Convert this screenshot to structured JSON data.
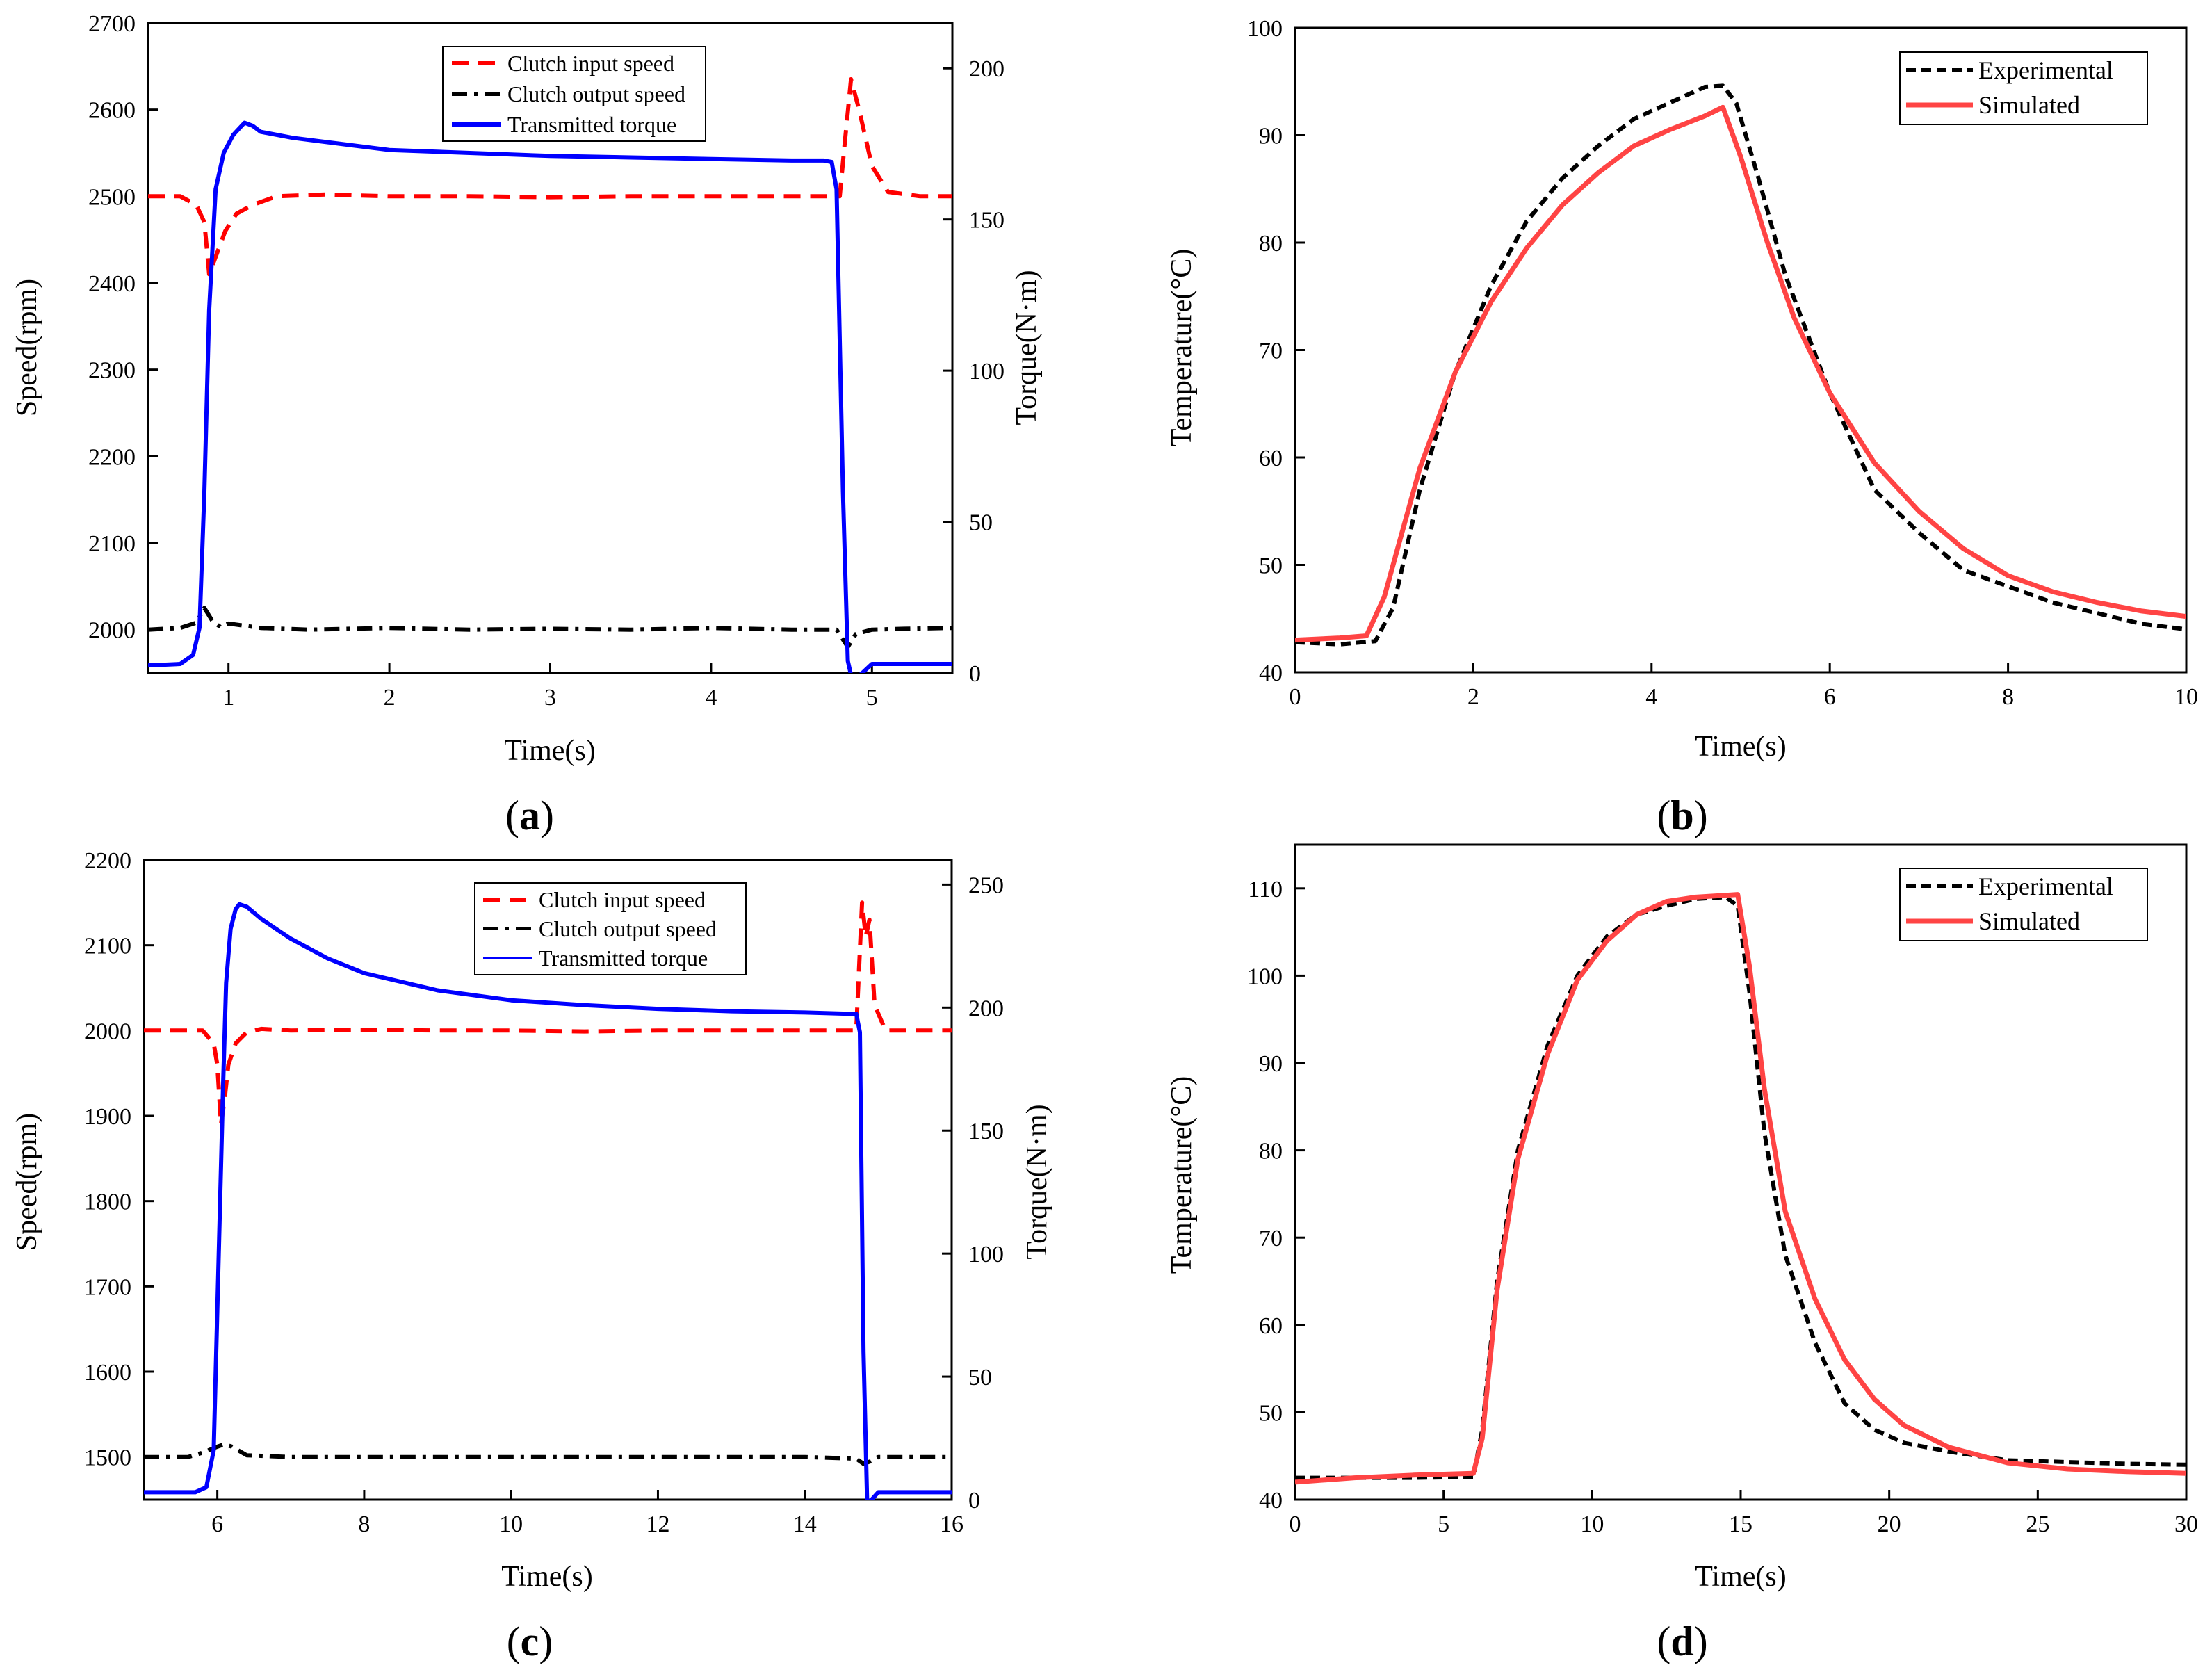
{
  "colors": {
    "input": "#ff0000",
    "output": "#000000",
    "torque": "#0000ff",
    "experimental": "#000000",
    "simulated": "#ff4444"
  },
  "chart_data": [
    {
      "id": "a",
      "panel_label": "a",
      "type": "line",
      "xlabel": "Time(s)",
      "ylabel": "Speed(rpm)",
      "y2label": "Torque(N·m)",
      "xlim": [
        0.5,
        5.5
      ],
      "ylim": [
        1950,
        2700
      ],
      "y2lim": [
        0,
        215
      ],
      "xticks": [
        1,
        2,
        3,
        4,
        5
      ],
      "yticks": [
        2000,
        2100,
        2200,
        2300,
        2400,
        2500,
        2600,
        2700
      ],
      "y2ticks": [
        0,
        50,
        100,
        150,
        200
      ],
      "legend_position": "top-center",
      "series": [
        {
          "name": "Clutch input speed",
          "axis": "left",
          "style": "input",
          "x": [
            0.5,
            0.7,
            0.8,
            0.85,
            0.88,
            0.92,
            0.98,
            1.05,
            1.15,
            1.3,
            1.6,
            2,
            2.5,
            3,
            3.5,
            4,
            4.5,
            4.8,
            4.83,
            4.87,
            4.92,
            5,
            5.1,
            5.3,
            5.5
          ],
          "y": [
            2500,
            2500,
            2490,
            2470,
            2410,
            2430,
            2460,
            2480,
            2490,
            2500,
            2502,
            2500,
            2500,
            2499,
            2500,
            2500,
            2500,
            2500,
            2560,
            2635,
            2600,
            2535,
            2505,
            2500,
            2500
          ]
        },
        {
          "name": "Clutch output speed",
          "axis": "left",
          "style": "output",
          "x": [
            0.5,
            0.7,
            0.8,
            0.85,
            0.9,
            0.95,
            1,
            1.2,
            1.5,
            2,
            2.5,
            3,
            3.5,
            4,
            4.5,
            4.7,
            4.78,
            4.85,
            4.9,
            5,
            5.2,
            5.5
          ],
          "y": [
            2000,
            2002,
            2008,
            2025,
            2010,
            2003,
            2007,
            2002,
            2000,
            2002,
            2000,
            2001,
            2000,
            2002,
            2000,
            2000,
            2000,
            1980,
            1995,
            2000,
            2001,
            2002
          ]
        },
        {
          "name": "Transmitted torque",
          "axis": "right",
          "style": "torque",
          "x": [
            0.5,
            0.7,
            0.78,
            0.82,
            0.85,
            0.88,
            0.92,
            0.97,
            1.03,
            1.1,
            1.15,
            1.2,
            1.4,
            1.7,
            2,
            2.5,
            3,
            3.5,
            4,
            4.5,
            4.7,
            4.75,
            4.78,
            4.82,
            4.85,
            4.88,
            5,
            5.5
          ],
          "y": [
            2.5,
            3,
            6,
            15,
            60,
            120,
            160,
            172,
            178,
            182,
            181,
            179,
            177,
            175,
            173,
            172,
            171,
            170.5,
            170,
            169.5,
            169.5,
            169,
            160,
            60,
            4,
            -3,
            3,
            3
          ]
        }
      ]
    },
    {
      "id": "b",
      "panel_label": "b",
      "type": "line",
      "xlabel": "Time(s)",
      "ylabel": "Temperature(°C)",
      "xlim": [
        0,
        10
      ],
      "ylim": [
        40,
        100
      ],
      "xticks": [
        0,
        2,
        4,
        6,
        8,
        10
      ],
      "yticks": [
        40,
        50,
        60,
        70,
        80,
        90,
        100
      ],
      "legend_position": "top-right",
      "series": [
        {
          "name": "Experimental",
          "style": "experimental",
          "x": [
            0,
            0.5,
            0.9,
            1.1,
            1.4,
            1.8,
            2.2,
            2.6,
            3,
            3.4,
            3.8,
            4.2,
            4.6,
            4.8,
            4.95,
            5.2,
            5.5,
            6,
            6.5,
            7,
            7.5,
            8,
            8.5,
            9,
            9.5,
            10
          ],
          "y": [
            42.8,
            42.6,
            42.9,
            46,
            57,
            68,
            76,
            82,
            86,
            89,
            91.5,
            93,
            94.5,
            94.6,
            93,
            86,
            77,
            66,
            57,
            53,
            49.5,
            48,
            46.5,
            45.5,
            44.5,
            44
          ]
        },
        {
          "name": "Simulated",
          "style": "simulated",
          "x": [
            0,
            0.5,
            0.8,
            1.0,
            1.2,
            1.4,
            1.8,
            2.2,
            2.6,
            3,
            3.4,
            3.8,
            4.2,
            4.6,
            4.8,
            5.0,
            5.3,
            5.6,
            6,
            6.5,
            7,
            7.5,
            8,
            8.5,
            9,
            9.5,
            10
          ],
          "y": [
            43,
            43.2,
            43.4,
            47,
            53,
            59,
            68,
            74.5,
            79.5,
            83.5,
            86.5,
            89,
            90.5,
            91.8,
            92.6,
            88,
            80,
            73,
            66,
            59.5,
            55,
            51.5,
            49,
            47.5,
            46.5,
            45.7,
            45.2
          ]
        }
      ]
    },
    {
      "id": "c",
      "panel_label": "c",
      "type": "line",
      "xlabel": "Time(s)",
      "ylabel": "Speed(rpm)",
      "y2label": "Torque(N·m)",
      "xlim": [
        5,
        16
      ],
      "ylim": [
        1450,
        2200
      ],
      "y2lim": [
        0,
        260
      ],
      "xticks": [
        6,
        8,
        10,
        12,
        14,
        16
      ],
      "yticks": [
        1500,
        1600,
        1700,
        1800,
        1900,
        2000,
        2100,
        2200
      ],
      "y2ticks": [
        0,
        50,
        100,
        150,
        200,
        250
      ],
      "legend_position": "top-center",
      "series": [
        {
          "name": "Clutch input speed",
          "axis": "left",
          "style": "input",
          "x": [
            5,
            5.8,
            5.95,
            6.0,
            6.05,
            6.1,
            6.15,
            6.25,
            6.4,
            6.6,
            7,
            8,
            9,
            10,
            11,
            12,
            13,
            14,
            14.7,
            14.78,
            14.83,
            14.88,
            14.95,
            15.1,
            15.5,
            16
          ],
          "y": [
            2000,
            2000,
            1985,
            1960,
            1890,
            1920,
            1960,
            1985,
            1998,
            2002,
            2000,
            2001,
            2000,
            2000,
            1999,
            2000,
            2000,
            2000,
            2000,
            2150,
            2110,
            2130,
            2030,
            2000,
            2000,
            2000
          ]
        },
        {
          "name": "Clutch output speed",
          "axis": "left",
          "style": "output",
          "x": [
            5,
            5.6,
            5.8,
            6.0,
            6.1,
            6.2,
            6.4,
            7,
            8,
            10,
            12,
            14,
            14.7,
            14.8,
            14.9,
            15,
            15.5,
            16
          ],
          "y": [
            1500,
            1500,
            1505,
            1512,
            1515,
            1512,
            1502,
            1500,
            1500,
            1500,
            1500,
            1500,
            1498,
            1492,
            1495,
            1500,
            1500,
            1500
          ]
        },
        {
          "name": "Transmitted torque",
          "axis": "right",
          "style": "torque",
          "x": [
            5,
            5.7,
            5.85,
            5.95,
            6.02,
            6.08,
            6.12,
            6.18,
            6.25,
            6.3,
            6.4,
            6.6,
            7,
            7.5,
            8,
            9,
            10,
            11,
            12,
            13,
            14,
            14.6,
            14.7,
            14.75,
            14.8,
            14.85,
            15.0,
            16
          ],
          "y": [
            3,
            3,
            5,
            20,
            100,
            170,
            210,
            232,
            240,
            242,
            241,
            236,
            228,
            220,
            214,
            207,
            203,
            201,
            199.5,
            198.5,
            198,
            197.5,
            197.5,
            190,
            60,
            -2,
            3,
            3
          ]
        }
      ]
    },
    {
      "id": "d",
      "panel_label": "d",
      "type": "line",
      "xlabel": "Time(s)",
      "ylabel": "Temperature(°C)",
      "xlim": [
        0,
        30
      ],
      "ylim": [
        40,
        115
      ],
      "xticks": [
        0,
        5,
        10,
        15,
        20,
        25,
        30
      ],
      "yticks": [
        40,
        50,
        60,
        70,
        80,
        90,
        100,
        110
      ],
      "legend_position": "top-right",
      "series": [
        {
          "name": "Experimental",
          "style": "experimental",
          "x": [
            0,
            2,
            4,
            6,
            6.3,
            6.8,
            7.5,
            8.5,
            9.5,
            10.5,
            11.5,
            12.5,
            13.5,
            14.5,
            14.9,
            15.3,
            15.8,
            16.5,
            17.5,
            18.5,
            19.5,
            20.5,
            22,
            24,
            26,
            28,
            30
          ],
          "y": [
            42.5,
            42.5,
            42.5,
            42.6,
            48,
            65,
            80,
            92,
            100,
            104.5,
            107,
            108,
            108.8,
            109,
            108,
            98,
            82,
            68,
            58,
            51,
            48,
            46.5,
            45.5,
            44.5,
            44.3,
            44.1,
            44
          ]
        },
        {
          "name": "Simulated",
          "style": "simulated",
          "x": [
            0,
            2,
            4,
            6,
            6.3,
            6.8,
            7.5,
            8.5,
            9.5,
            10.5,
            11.5,
            12.5,
            13.5,
            14.5,
            14.9,
            15.3,
            15.8,
            16.5,
            17.5,
            18.5,
            19.5,
            20.5,
            22,
            24,
            26,
            28,
            30
          ],
          "y": [
            42,
            42.5,
            42.8,
            43,
            47,
            64,
            79,
            91,
            99.5,
            104,
            107,
            108.5,
            109,
            109.2,
            109.3,
            101,
            87,
            73,
            63,
            56,
            51.5,
            48.5,
            46,
            44.2,
            43.5,
            43.2,
            43
          ]
        }
      ]
    }
  ]
}
